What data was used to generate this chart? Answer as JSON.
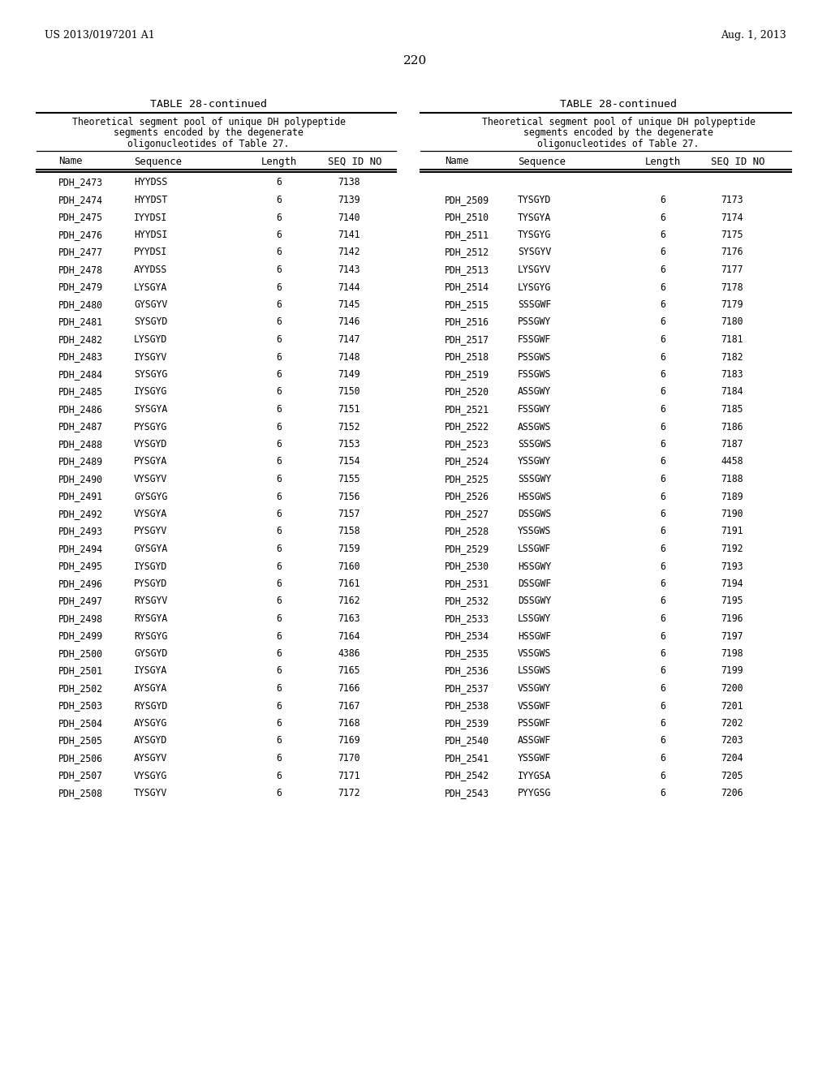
{
  "page_header_left": "US 2013/0197201 A1",
  "page_header_right": "Aug. 1, 2013",
  "page_number": "220",
  "table_title": "TABLE 28-continued",
  "table_description": "Theoretical segment pool of unique DH polypeptide\nsegments encoded by the degenerate\noligonucleotides of Table 27.",
  "col_headers": [
    "Name",
    "Sequence",
    "Length",
    "SEQ ID NO"
  ],
  "left_data": [
    [
      "PDH_2473",
      "HYYDSS",
      "6",
      "7138"
    ],
    [
      "PDH_2474",
      "HYYDST",
      "6",
      "7139"
    ],
    [
      "PDH_2475",
      "IYYDSI",
      "6",
      "7140"
    ],
    [
      "PDH_2476",
      "HYYDSI",
      "6",
      "7141"
    ],
    [
      "PDH_2477",
      "PYYDSI",
      "6",
      "7142"
    ],
    [
      "PDH_2478",
      "AYYDSS",
      "6",
      "7143"
    ],
    [
      "PDH_2479",
      "LYSGYA",
      "6",
      "7144"
    ],
    [
      "PDH_2480",
      "GYSGYV",
      "6",
      "7145"
    ],
    [
      "PDH_2481",
      "SYSGYD",
      "6",
      "7146"
    ],
    [
      "PDH_2482",
      "LYSGYD",
      "6",
      "7147"
    ],
    [
      "PDH_2483",
      "IYSGYV",
      "6",
      "7148"
    ],
    [
      "PDH_2484",
      "SYSGYG",
      "6",
      "7149"
    ],
    [
      "PDH_2485",
      "IYSGYG",
      "6",
      "7150"
    ],
    [
      "PDH_2486",
      "SYSGYA",
      "6",
      "7151"
    ],
    [
      "PDH_2487",
      "PYSGYG",
      "6",
      "7152"
    ],
    [
      "PDH_2488",
      "VYSGYD",
      "6",
      "7153"
    ],
    [
      "PDH_2489",
      "PYSGYA",
      "6",
      "7154"
    ],
    [
      "PDH_2490",
      "VYSGYV",
      "6",
      "7155"
    ],
    [
      "PDH_2491",
      "GYSGYG",
      "6",
      "7156"
    ],
    [
      "PDH_2492",
      "VYSGYA",
      "6",
      "7157"
    ],
    [
      "PDH_2493",
      "PYSGYV",
      "6",
      "7158"
    ],
    [
      "PDH_2494",
      "GYSGYA",
      "6",
      "7159"
    ],
    [
      "PDH_2495",
      "IYSGYD",
      "6",
      "7160"
    ],
    [
      "PDH_2496",
      "PYSGYD",
      "6",
      "7161"
    ],
    [
      "PDH_2497",
      "RYSGYV",
      "6",
      "7162"
    ],
    [
      "PDH_2498",
      "RYSGYA",
      "6",
      "7163"
    ],
    [
      "PDH_2499",
      "RYSGYG",
      "6",
      "7164"
    ],
    [
      "PDH_2500",
      "GYSGYD",
      "6",
      "4386"
    ],
    [
      "PDH_2501",
      "IYSGYA",
      "6",
      "7165"
    ],
    [
      "PDH_2502",
      "AYSGYA",
      "6",
      "7166"
    ],
    [
      "PDH_2503",
      "RYSGYD",
      "6",
      "7167"
    ],
    [
      "PDH_2504",
      "AYSGYG",
      "6",
      "7168"
    ],
    [
      "PDH_2505",
      "AYSGYD",
      "6",
      "7169"
    ],
    [
      "PDH_2506",
      "AYSGYV",
      "6",
      "7170"
    ],
    [
      "PDH_2507",
      "VYSGYG",
      "6",
      "7171"
    ],
    [
      "PDH_2508",
      "TYSGYV",
      "6",
      "7172"
    ]
  ],
  "right_data": [
    [
      "PDH_2509",
      "TYSGYD",
      "6",
      "7173"
    ],
    [
      "PDH_2510",
      "TYSGYA",
      "6",
      "7174"
    ],
    [
      "PDH_2511",
      "TYSGYG",
      "6",
      "7175"
    ],
    [
      "PDH_2512",
      "SYSGYV",
      "6",
      "7176"
    ],
    [
      "PDH_2513",
      "LYSGYV",
      "6",
      "7177"
    ],
    [
      "PDH_2514",
      "LYSGYG",
      "6",
      "7178"
    ],
    [
      "PDH_2515",
      "SSSGWF",
      "6",
      "7179"
    ],
    [
      "PDH_2516",
      "PSSGWY",
      "6",
      "7180"
    ],
    [
      "PDH_2517",
      "FSSGWF",
      "6",
      "7181"
    ],
    [
      "PDH_2518",
      "PSSGWS",
      "6",
      "7182"
    ],
    [
      "PDH_2519",
      "FSSGWS",
      "6",
      "7183"
    ],
    [
      "PDH_2520",
      "ASSGWY",
      "6",
      "7184"
    ],
    [
      "PDH_2521",
      "FSSGWY",
      "6",
      "7185"
    ],
    [
      "PDH_2522",
      "ASSGWS",
      "6",
      "7186"
    ],
    [
      "PDH_2523",
      "SSSGWS",
      "6",
      "7187"
    ],
    [
      "PDH_2524",
      "YSSGWY",
      "6",
      "4458"
    ],
    [
      "PDH_2525",
      "SSSGWY",
      "6",
      "7188"
    ],
    [
      "PDH_2526",
      "HSSGWS",
      "6",
      "7189"
    ],
    [
      "PDH_2527",
      "DSSGWS",
      "6",
      "7190"
    ],
    [
      "PDH_2528",
      "YSSGWS",
      "6",
      "7191"
    ],
    [
      "PDH_2529",
      "LSSGWF",
      "6",
      "7192"
    ],
    [
      "PDH_2530",
      "HSSGWY",
      "6",
      "7193"
    ],
    [
      "PDH_2531",
      "DSSGWF",
      "6",
      "7194"
    ],
    [
      "PDH_2532",
      "DSSGWY",
      "6",
      "7195"
    ],
    [
      "PDH_2533",
      "LSSGWY",
      "6",
      "7196"
    ],
    [
      "PDH_2534",
      "HSSGWF",
      "6",
      "7197"
    ],
    [
      "PDH_2535",
      "VSSGWS",
      "6",
      "7198"
    ],
    [
      "PDH_2536",
      "LSSGWS",
      "6",
      "7199"
    ],
    [
      "PDH_2537",
      "VSSGWY",
      "6",
      "7200"
    ],
    [
      "PDH_2538",
      "VSSGWF",
      "6",
      "7201"
    ],
    [
      "PDH_2539",
      "PSSGWF",
      "6",
      "7202"
    ],
    [
      "PDH_2540",
      "ASSGWF",
      "6",
      "7203"
    ],
    [
      "PDH_2541",
      "YSSGWF",
      "6",
      "7204"
    ],
    [
      "PDH_2542",
      "IYYGSA",
      "6",
      "7205"
    ],
    [
      "PDH_2543",
      "PYYGSG",
      "6",
      "7206"
    ]
  ],
  "background_color": "#ffffff",
  "text_color": "#000000"
}
